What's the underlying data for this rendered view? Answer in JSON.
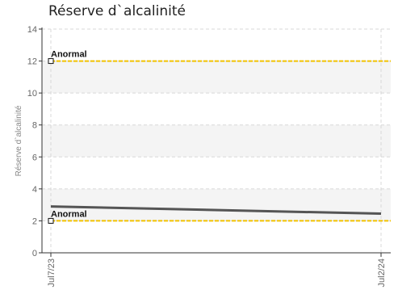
{
  "chart_data": {
    "type": "line",
    "title": "Réserve d`alcalinité",
    "xlabel": "",
    "ylabel": "Réserve d`alcalinité",
    "ylim": [
      0,
      14
    ],
    "yticks": [
      0,
      2,
      4,
      6,
      8,
      10,
      12,
      14
    ],
    "x": [
      "Jul7/23",
      "Jul2/24"
    ],
    "grid": true,
    "series": [
      {
        "values": [
          2.9,
          2.45
        ],
        "color": "#555555"
      }
    ],
    "thresholds": [
      {
        "label": "Anormal",
        "value": 12,
        "color": "#f2c200"
      },
      {
        "label": "Anormal",
        "value": 2,
        "color": "#f2c200"
      }
    ]
  }
}
